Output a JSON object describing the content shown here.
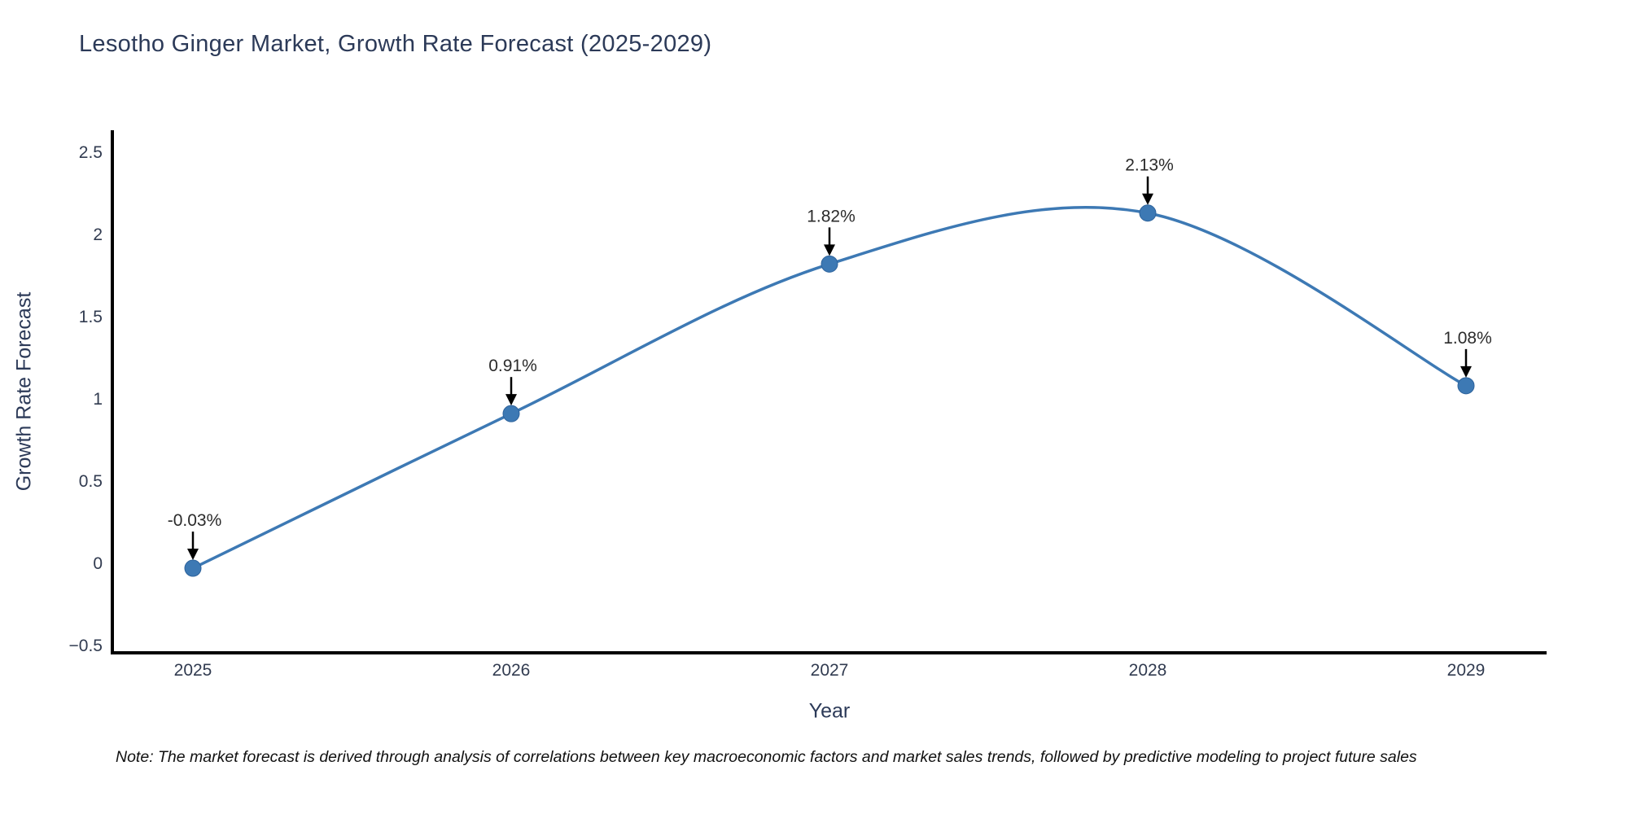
{
  "title": "Lesotho Ginger Market, Growth Rate Forecast (2025-2029)",
  "note": "Note: The market forecast is derived through analysis of correlations between key macroeconomic factors and market sales trends, followed by predictive modeling to project future sales",
  "chart_data": {
    "type": "line",
    "title": "Lesotho Ginger Market, Growth Rate Forecast (2025-2029)",
    "xlabel": "Year",
    "ylabel": "Growth Rate Forecast",
    "x": [
      2025,
      2026,
      2027,
      2028,
      2029
    ],
    "xtick_labels": [
      "2025",
      "2026",
      "2027",
      "2028",
      "2029"
    ],
    "series": [
      {
        "name": "Growth Rate Forecast",
        "values": [
          -0.03,
          0.91,
          1.82,
          2.13,
          1.08
        ]
      }
    ],
    "point_labels": [
      "-0.03%",
      "0.91%",
      "1.82%",
      "2.13%",
      "1.08%"
    ],
    "ylim": [
      -0.5,
      2.5
    ],
    "yticks": [
      -0.5,
      0,
      0.5,
      1,
      1.5,
      2,
      2.5
    ],
    "ytick_labels": [
      "−0.5",
      "0",
      "0.5",
      "1",
      "1.5",
      "2",
      "2.5"
    ],
    "line_shape": "spline",
    "grid": false,
    "legend": "none",
    "line_color": "#3d79b4",
    "marker_color": "#3d79b4",
    "marker_edge_color": "#2e639c",
    "axis_color": "#000000",
    "annotation_arrow_color": "#000000",
    "title_color": "#2c3a58",
    "background_color": "#ffffff"
  }
}
